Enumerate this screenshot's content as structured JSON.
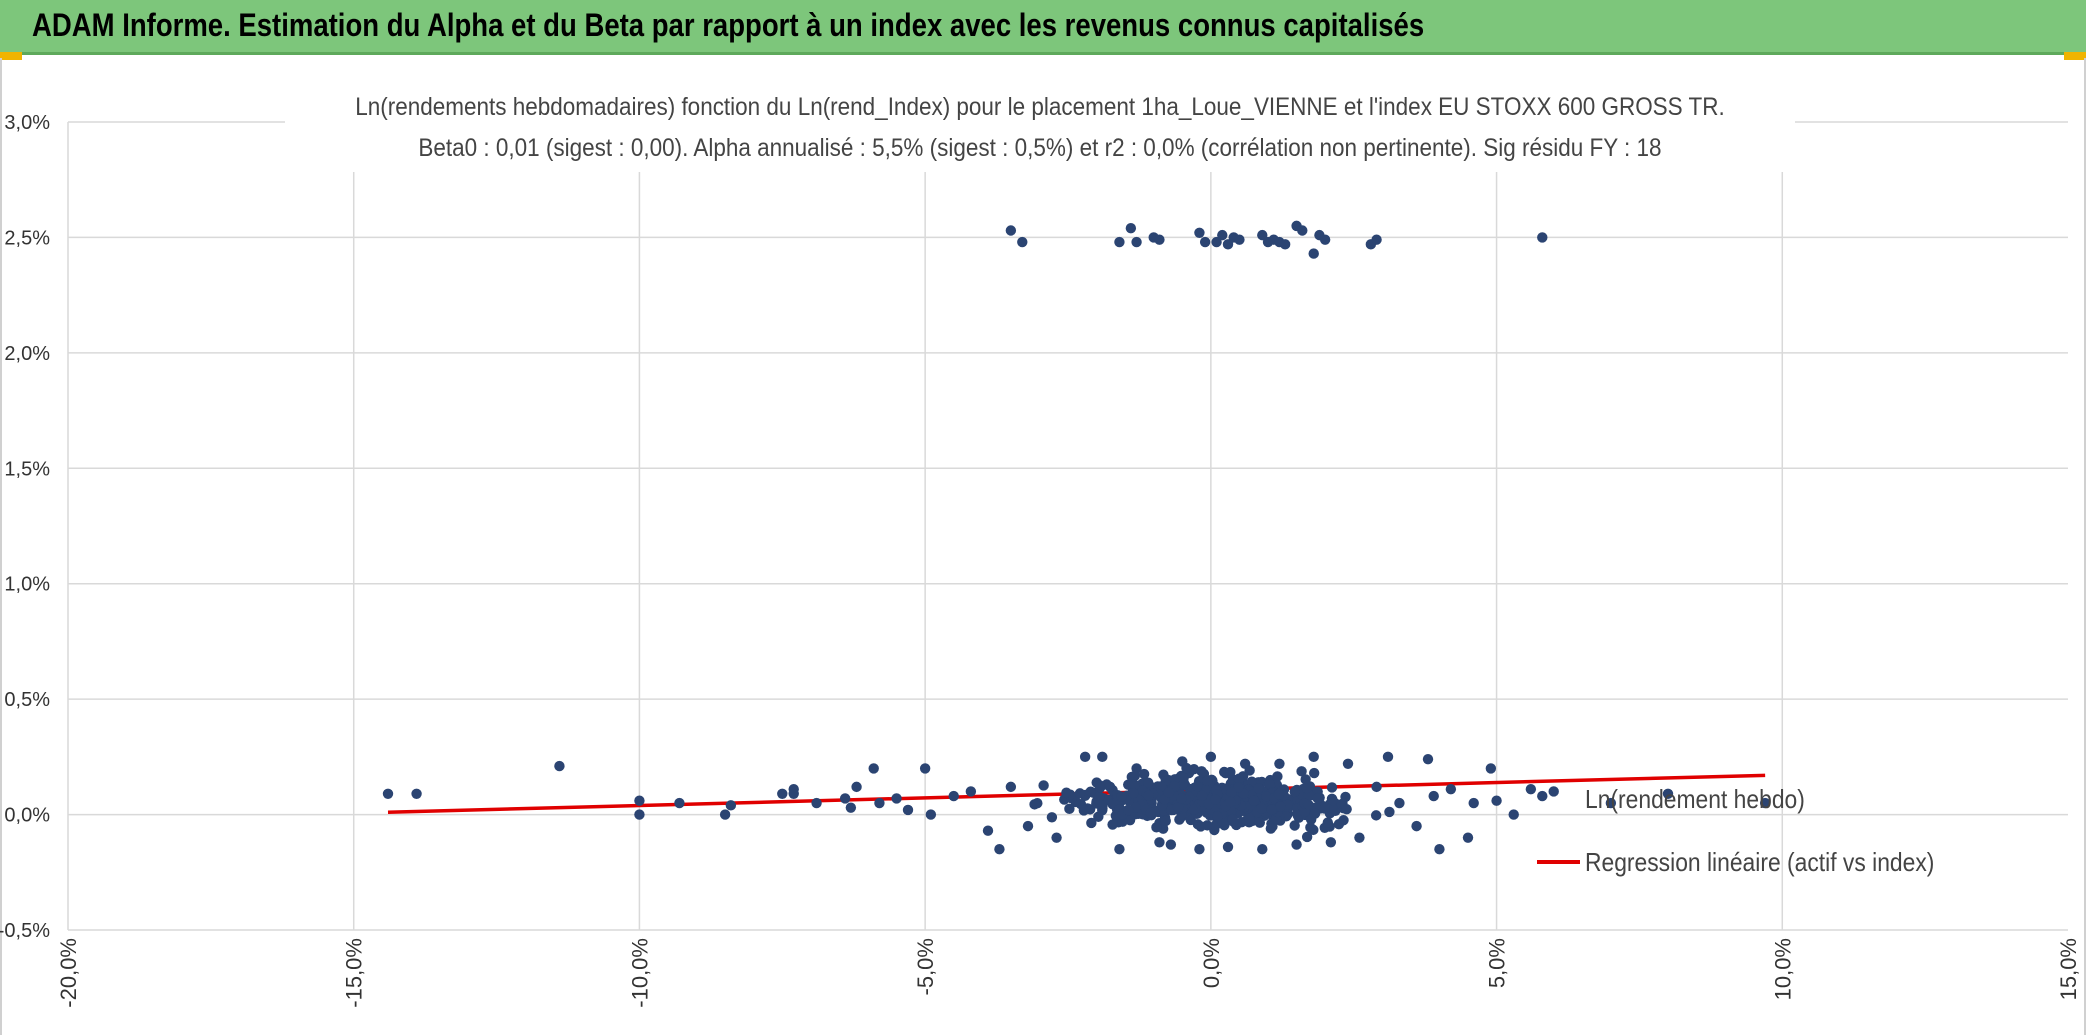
{
  "header": {
    "title": "ADAM Informe. Estimation du Alpha et du Beta par rapport à un index avec les revenus connus capitalisés",
    "accent_color": "#7dc67b"
  },
  "chart_data": {
    "type": "scatter",
    "title": "Ln(rendements hebdomadaires) fonction du Ln(rend_Index) pour le placement 1ha_Loue_VIENNE et l'index EU STOXX 600 GROSS TR.",
    "subtitle": "Beta0 : 0,01 (sigest : 0,00). Alpha annualisé : 5,5% (sigest : 0,5%) et r2 : 0,0% (corrélation non pertinente). Sig résidu FY : 18",
    "xlabel": "",
    "ylabel": "",
    "xlim": [
      -20,
      15
    ],
    "ylim": [
      -0.5,
      3.0
    ],
    "x_ticks": [
      "-20,0%",
      "-15,0%",
      "-10,0%",
      "-5,0%",
      "0,0%",
      "5,0%",
      "10,0%",
      "15,0%"
    ],
    "y_ticks": [
      "3,0%",
      "2,5%",
      "2,0%",
      "1,5%",
      "1,0%",
      "0,5%",
      "0,0%",
      "-0,5%"
    ],
    "grid": true,
    "legend_position": "right",
    "series": [
      {
        "name": "Ln(rendement hebdo)",
        "color": "#2b4472",
        "type": "scatter",
        "points": [
          [
            -14.4,
            0.09
          ],
          [
            -13.9,
            0.09
          ],
          [
            -11.4,
            0.21
          ],
          [
            -10.0,
            0.06
          ],
          [
            -10.0,
            0.0
          ],
          [
            -9.3,
            0.05
          ],
          [
            -8.5,
            0.0
          ],
          [
            -8.4,
            0.04
          ],
          [
            -7.5,
            0.09
          ],
          [
            -7.3,
            0.09
          ],
          [
            -7.3,
            0.11
          ],
          [
            -6.9,
            0.05
          ],
          [
            -6.4,
            0.07
          ],
          [
            -6.3,
            0.03
          ],
          [
            -6.2,
            0.12
          ],
          [
            -5.9,
            0.2
          ],
          [
            -5.8,
            0.05
          ],
          [
            -5.5,
            0.07
          ],
          [
            -5.3,
            0.02
          ],
          [
            -5.0,
            0.2
          ],
          [
            -4.9,
            0.0
          ],
          [
            -4.5,
            0.08
          ],
          [
            -4.2,
            0.1
          ],
          [
            -3.9,
            -0.07
          ],
          [
            -3.7,
            -0.15
          ],
          [
            -3.5,
            0.12
          ],
          [
            -3.2,
            -0.05
          ],
          [
            -2.7,
            -0.1
          ],
          [
            -2.2,
            0.25
          ],
          [
            -1.9,
            0.25
          ],
          [
            -1.6,
            -0.15
          ],
          [
            -1.3,
            0.2
          ],
          [
            -0.9,
            -0.12
          ],
          [
            -0.7,
            -0.13
          ],
          [
            -0.5,
            0.23
          ],
          [
            -0.2,
            -0.15
          ],
          [
            0.0,
            0.25
          ],
          [
            0.3,
            -0.14
          ],
          [
            0.6,
            0.22
          ],
          [
            0.9,
            -0.15
          ],
          [
            1.2,
            0.22
          ],
          [
            1.5,
            -0.13
          ],
          [
            1.8,
            0.25
          ],
          [
            2.1,
            -0.12
          ],
          [
            2.4,
            0.22
          ],
          [
            2.6,
            -0.1
          ],
          [
            2.9,
            0.12
          ],
          [
            3.1,
            0.25
          ],
          [
            3.3,
            0.05
          ],
          [
            3.6,
            -0.05
          ],
          [
            3.8,
            0.24
          ],
          [
            3.9,
            0.08
          ],
          [
            4.0,
            -0.15
          ],
          [
            4.2,
            0.11
          ],
          [
            4.5,
            -0.1
          ],
          [
            4.6,
            0.05
          ],
          [
            4.9,
            0.2
          ],
          [
            5.0,
            0.06
          ],
          [
            5.3,
            0.0
          ],
          [
            5.6,
            0.11
          ],
          [
            5.8,
            0.08
          ],
          [
            6.0,
            0.1
          ],
          [
            7.0,
            0.05
          ],
          [
            8.0,
            0.09
          ],
          [
            9.7,
            0.05
          ],
          [
            -3.5,
            2.53
          ],
          [
            -3.3,
            2.48
          ],
          [
            -1.6,
            2.48
          ],
          [
            -1.4,
            2.54
          ],
          [
            -1.3,
            2.48
          ],
          [
            -1.0,
            2.5
          ],
          [
            -0.9,
            2.49
          ],
          [
            -0.2,
            2.52
          ],
          [
            -0.1,
            2.48
          ],
          [
            0.1,
            2.48
          ],
          [
            0.2,
            2.51
          ],
          [
            0.3,
            2.47
          ],
          [
            0.4,
            2.5
          ],
          [
            0.5,
            2.49
          ],
          [
            0.9,
            2.51
          ],
          [
            1.0,
            2.48
          ],
          [
            1.1,
            2.49
          ],
          [
            1.2,
            2.48
          ],
          [
            1.3,
            2.47
          ],
          [
            1.5,
            2.55
          ],
          [
            1.6,
            2.53
          ],
          [
            1.8,
            2.43
          ],
          [
            1.9,
            2.51
          ],
          [
            2.0,
            2.49
          ],
          [
            2.8,
            2.47
          ],
          [
            2.9,
            2.49
          ],
          [
            5.8,
            2.5
          ]
        ]
      },
      {
        "name": "Regression linéaire (actif vs index)",
        "color": "#e00000",
        "type": "line",
        "x": [
          -14.4,
          9.7
        ],
        "y": [
          0.01,
          0.17
        ]
      }
    ]
  }
}
